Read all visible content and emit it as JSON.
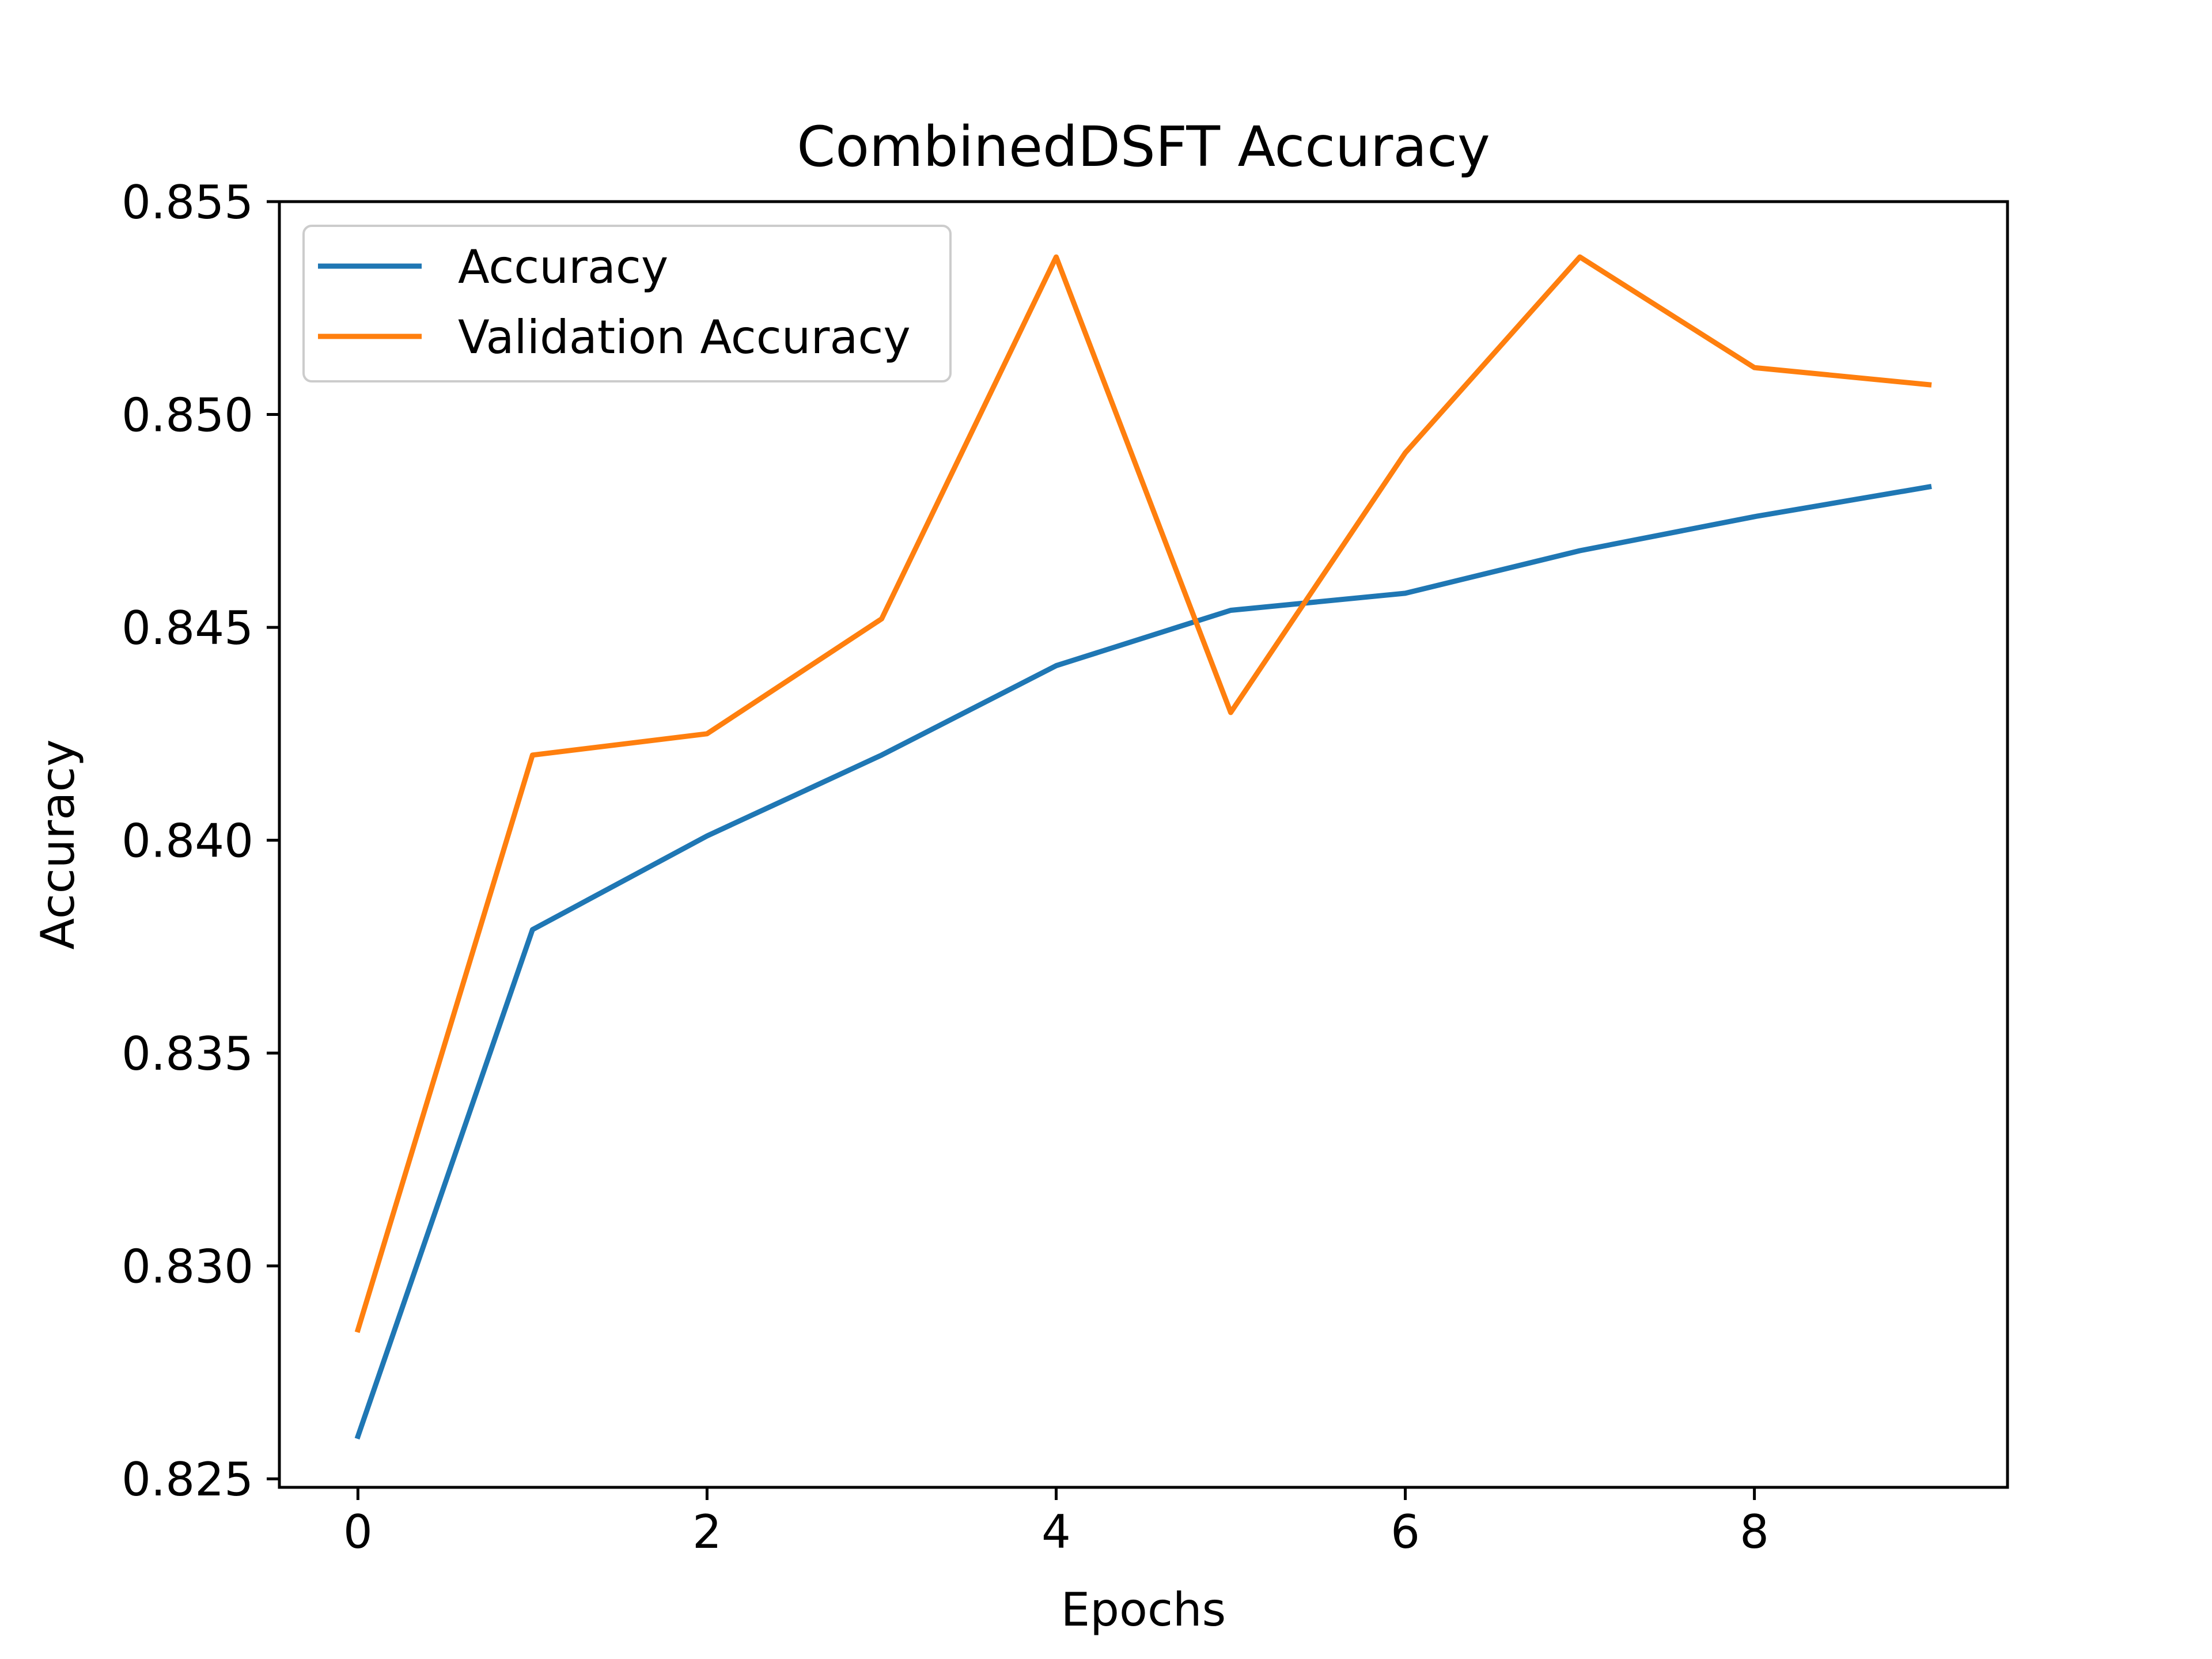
{
  "chart_data": {
    "type": "line",
    "title": "CombinedDSFT Accuracy",
    "xlabel": "Epochs",
    "ylabel": "Accuracy",
    "xlim": [
      -0.45,
      9.45
    ],
    "ylim": [
      0.8248,
      0.855
    ],
    "x": [
      0,
      1,
      2,
      3,
      4,
      5,
      6,
      7,
      8,
      9
    ],
    "xticks": [
      0,
      2,
      4,
      6,
      8
    ],
    "xtick_labels": [
      "0",
      "2",
      "4",
      "6",
      "8"
    ],
    "yticks": [
      0.825,
      0.83,
      0.835,
      0.84,
      0.845,
      0.85,
      0.855
    ],
    "ytick_labels": [
      "0.825",
      "0.830",
      "0.835",
      "0.840",
      "0.845",
      "0.850",
      "0.855"
    ],
    "grid": false,
    "legend_position": "top-left",
    "series": [
      {
        "name": "Accuracy",
        "color": "#1f77b4",
        "values": [
          0.826,
          0.8379,
          0.8401,
          0.842,
          0.8441,
          0.8454,
          0.8458,
          0.8468,
          0.8476,
          0.8483
        ]
      },
      {
        "name": "Validation Accuracy",
        "color": "#ff7f0e",
        "values": [
          0.8285,
          0.842,
          0.8425,
          0.8452,
          0.8537,
          0.843,
          0.8491,
          0.8537,
          0.8511,
          0.8507
        ]
      }
    ]
  }
}
